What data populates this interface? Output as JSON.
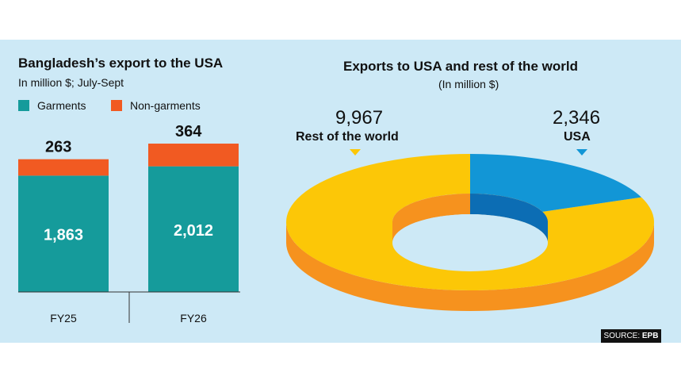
{
  "colors": {
    "background": "#cde9f6",
    "garments": "#159b9b",
    "non_garments": "#f15a22",
    "rest_of_world": "#fcc707",
    "rest_of_world_side": "#f6921e",
    "usa": "#1296d6",
    "usa_side": "#0c6db4"
  },
  "chart_data": [
    {
      "type": "bar",
      "title": "Bangladesh’s export to the USA",
      "subtitle": "In million $; July-Sept",
      "categories": [
        "FY25",
        "FY26"
      ],
      "series": [
        {
          "name": "Garments",
          "values": [
            1863,
            2012
          ],
          "value_labels": [
            "1,863",
            "2,012"
          ]
        },
        {
          "name": "Non-garments",
          "values": [
            263,
            364
          ],
          "value_labels": [
            "263",
            "364"
          ]
        }
      ],
      "stacked": true,
      "legend": "top-left",
      "grid": false,
      "ylim": [
        0,
        2500
      ]
    },
    {
      "type": "pie",
      "donut": true,
      "title": "Exports to USA and rest of the world",
      "subtitle": "(In million $)",
      "slices": [
        {
          "label": "USA",
          "value": 2346,
          "value_label": "2,346"
        },
        {
          "label": "Rest of the world",
          "value": 9967,
          "value_label": "9,967"
        }
      ]
    }
  ],
  "source": {
    "prefix": "SOURCE:",
    "name": "EPB"
  }
}
